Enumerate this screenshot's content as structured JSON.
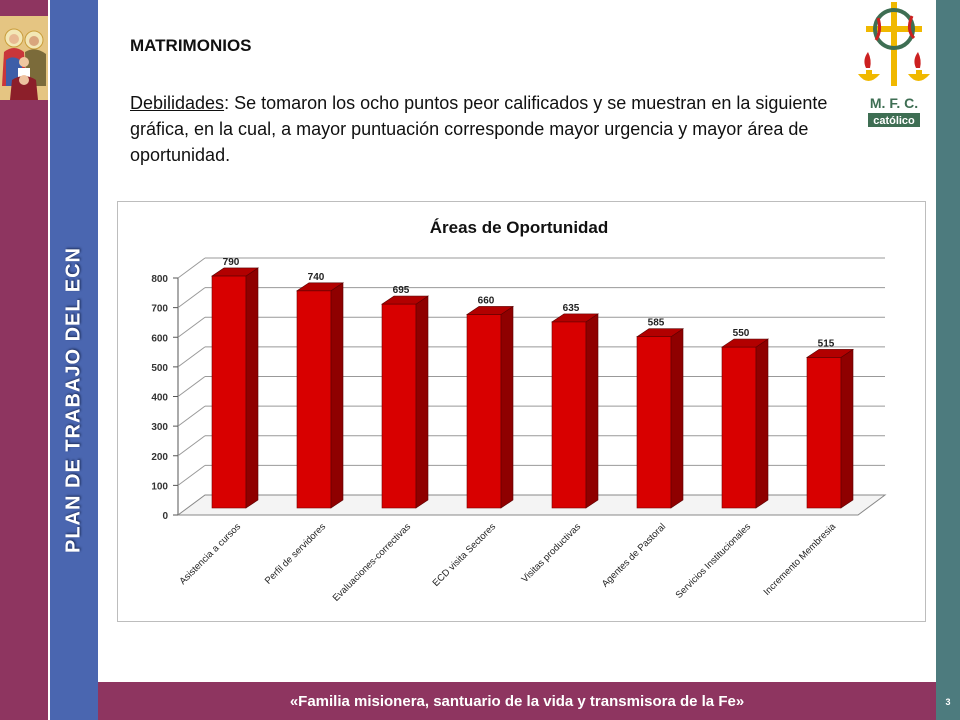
{
  "slide": {
    "heading": "MATRIMONIOS",
    "paragraph_label": "Debilidades",
    "paragraph_text": ": Se tomaron los ocho puntos peor calificados y se muestran en la siguiente  gráfica, en la cual, a mayor puntuación corresponde mayor urgencia y mayor área de oportunidad.",
    "vertical_title": "PLAN DE TRABAJO DEL ECN",
    "footer": "«Familia misionera, santuario de la vida y transmisora de la Fe»",
    "slide_number": "3",
    "logo_text": {
      "line1": "M. F. C.",
      "line2": "católico"
    }
  },
  "colors": {
    "maroon": "#8e3560",
    "blue": "#4a66b0",
    "teal": "#4d7b7e",
    "bar_front": "#d80000",
    "bar_side": "#8f0000",
    "bar_top": "#b20000",
    "logo_gold": "#f0b800",
    "logo_green": "#3e6e53",
    "logo_red": "#cc2020"
  },
  "chart_data": {
    "type": "bar",
    "title": "Áreas de Oportunidad",
    "categories": [
      "Asistencia a cursos",
      "Perfil de servidores",
      "Evaluaciones-correctivas",
      "ECD visita Sectores",
      "Visitas productivas",
      "Agentes de Pastoral",
      "Servicios Institucionales",
      "Incremento Membresia"
    ],
    "values": [
      790,
      740,
      695,
      660,
      635,
      585,
      550,
      515
    ],
    "yticks": [
      0,
      100,
      200,
      300,
      400,
      500,
      600,
      700,
      800
    ],
    "ylim": [
      0,
      800
    ],
    "xlabel": "",
    "ylabel": "",
    "grid": true,
    "legend": "none",
    "style": "3d"
  }
}
